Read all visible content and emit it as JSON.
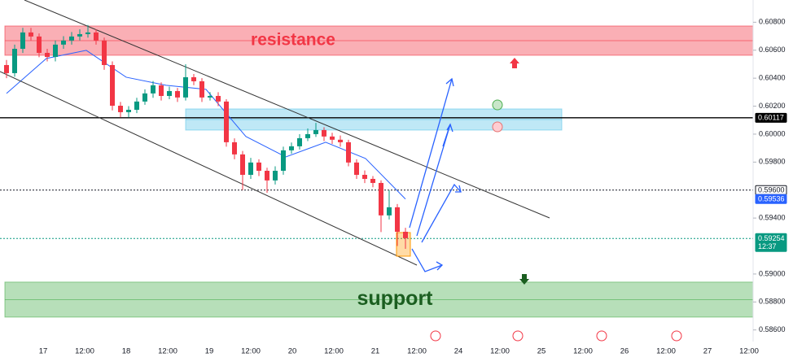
{
  "chart_data": {
    "type": "candlestick",
    "x": [
      "17",
      "12:00",
      "18",
      "12:00",
      "19",
      "12:00",
      "20",
      "12:00",
      "21",
      "12:00",
      "24",
      "12:00",
      "25",
      "12:00",
      "26",
      "12:00",
      "27",
      "12:00"
    ],
    "ylim": [
      0.58517,
      0.60959
    ],
    "yticks": [
      {
        "value": 0.608,
        "label": "0.60800"
      },
      {
        "value": 0.606,
        "label": "0.60600"
      },
      {
        "value": 0.604,
        "label": "0.60400"
      },
      {
        "value": 0.602,
        "label": "0.60200"
      },
      {
        "value": 0.6,
        "label": "0.60000"
      },
      {
        "value": 0.598,
        "label": "0.59800"
      },
      {
        "value": 0.594,
        "label": "0.59400"
      },
      {
        "value": 0.59,
        "label": "0.59000"
      },
      {
        "value": 0.588,
        "label": "0.58800"
      },
      {
        "value": 0.586,
        "label": "0.58600"
      }
    ],
    "up_color": "#089981",
    "down_color": "#f23645",
    "candles": [
      [
        0.60494,
        0.6053,
        0.604,
        0.60436
      ],
      [
        0.60436,
        0.6064,
        0.6041,
        0.6061
      ],
      [
        0.6061,
        0.6076,
        0.6058,
        0.60727
      ],
      [
        0.60727,
        0.6076,
        0.6067,
        0.60698
      ],
      [
        0.60698,
        0.6072,
        0.6055,
        0.60581
      ],
      [
        0.60581,
        0.6061,
        0.6052,
        0.60552
      ],
      [
        0.60552,
        0.6067,
        0.6052,
        0.6064
      ],
      [
        0.6064,
        0.607,
        0.6061,
        0.60669
      ],
      [
        0.60669,
        0.6073,
        0.6064,
        0.60698
      ],
      [
        0.60698,
        0.6075,
        0.6067,
        0.60715
      ],
      [
        0.60715,
        0.6078,
        0.6069,
        0.60727
      ],
      [
        0.60727,
        0.6075,
        0.6064,
        0.60669
      ],
      [
        0.60669,
        0.6069,
        0.6046,
        0.60494
      ],
      [
        0.60494,
        0.6052,
        0.6017,
        0.60203
      ],
      [
        0.60203,
        0.6023,
        0.6012,
        0.60157
      ],
      [
        0.60157,
        0.602,
        0.6012,
        0.60174
      ],
      [
        0.60174,
        0.6026,
        0.6015,
        0.60233
      ],
      [
        0.60233,
        0.6032,
        0.6021,
        0.60291
      ],
      [
        0.60291,
        0.6038,
        0.6026,
        0.60349
      ],
      [
        0.60349,
        0.6037,
        0.6024,
        0.60273
      ],
      [
        0.60273,
        0.6034,
        0.6025,
        0.60308
      ],
      [
        0.60308,
        0.6033,
        0.6023,
        0.60262
      ],
      [
        0.60262,
        0.605,
        0.6024,
        0.60407
      ],
      [
        0.60407,
        0.6043,
        0.6035,
        0.60378
      ],
      [
        0.60378,
        0.604,
        0.6023,
        0.60262
      ],
      [
        0.60262,
        0.603,
        0.6024,
        0.60273
      ],
      [
        0.60273,
        0.603,
        0.602,
        0.60233
      ],
      [
        0.60233,
        0.6025,
        0.5991,
        0.59942
      ],
      [
        0.59942,
        0.5997,
        0.5982,
        0.59855
      ],
      [
        0.59855,
        0.5988,
        0.596,
        0.59709
      ],
      [
        0.59709,
        0.5983,
        0.5968,
        0.59797
      ],
      [
        0.59797,
        0.5982,
        0.597,
        0.59738
      ],
      [
        0.59738,
        0.5976,
        0.5958,
        0.59669
      ],
      [
        0.59669,
        0.5977,
        0.5964,
        0.59738
      ],
      [
        0.59738,
        0.5991,
        0.5971,
        0.59884
      ],
      [
        0.59884,
        0.5994,
        0.5986,
        0.59913
      ],
      [
        0.59913,
        0.6,
        0.5989,
        0.59971
      ],
      [
        0.59971,
        0.6004,
        0.5995,
        0.6
      ],
      [
        0.6,
        0.6008,
        0.5998,
        0.60029
      ],
      [
        0.60029,
        0.6005,
        0.5995,
        0.59983
      ],
      [
        0.59983,
        0.6001,
        0.5993,
        0.5996
      ],
      [
        0.5996,
        0.5999,
        0.5991,
        0.59942
      ],
      [
        0.59942,
        0.5996,
        0.5977,
        0.59797
      ],
      [
        0.59797,
        0.5982,
        0.5968,
        0.59709
      ],
      [
        0.59709,
        0.5974,
        0.5965,
        0.5968
      ],
      [
        0.5968,
        0.597,
        0.5962,
        0.59651
      ],
      [
        0.59651,
        0.5967,
        0.593,
        0.59419
      ],
      [
        0.59419,
        0.596,
        0.5939,
        0.59477
      ],
      [
        0.59477,
        0.595,
        0.592,
        0.59302
      ],
      [
        0.59302,
        0.5933,
        0.5918,
        0.59256
      ]
    ],
    "moving_average": {
      "color": "#2962ff",
      "values": [
        0.60291,
        0.60541,
        0.60599,
        0.60407,
        0.60349,
        0.6032,
        0.59983,
        0.59837,
        0.59942,
        0.59826,
        0.59536
      ]
    },
    "zones": [
      {
        "label": "resistance",
        "range": [
          0.60564,
          0.60773
        ],
        "color": "#f23645",
        "text_color": "#f23645"
      },
      {
        "range": [
          0.60029,
          0.6018
        ],
        "color": "#5fc6e8"
      },
      {
        "label": "support",
        "range": [
          0.58692,
          0.58942
        ],
        "color": "#4caf50",
        "text_color": "#1b5e20"
      }
    ],
    "price_lines": [
      {
        "value": 0.60117,
        "style": "solid",
        "color": "#000000",
        "tag_bg": "#000000",
        "tag_fg": "#ffffff"
      },
      {
        "value": 0.596,
        "label": "0.59600",
        "style": "dotted",
        "color": "#131722",
        "tag_bg": "#ffffff",
        "tag_fg": "#131722"
      },
      {
        "value": 0.59536,
        "tag_bg": "#2962ff",
        "tag_fg": "#ffffff"
      },
      {
        "value": 0.59254,
        "timer": "12:37",
        "style": "dotted",
        "color": "#089981",
        "tag_bg": "#089981",
        "tag_fg": "#ffffff"
      }
    ]
  }
}
